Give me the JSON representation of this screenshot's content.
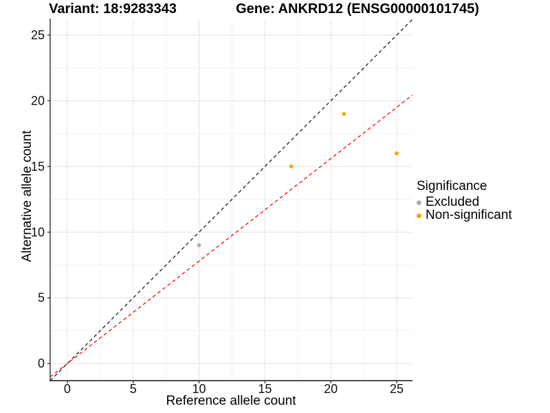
{
  "chart_data": {
    "type": "scatter",
    "titles": {
      "variant": "Variant: 18:9283343",
      "gene": "Gene: ANKRD12 (ENSG00000101745)"
    },
    "xlabel": "Reference allele count",
    "ylabel": "Alternative allele count",
    "xlim": [
      -1.3,
      26.2
    ],
    "ylim": [
      -1.3,
      26.2
    ],
    "major_ticks": [
      0,
      5,
      10,
      15,
      20,
      25
    ],
    "minor_ticks": [
      2.5,
      7.5,
      12.5,
      17.5,
      22.5
    ],
    "grid": true,
    "legend_position": "right",
    "points": [
      {
        "x": 10,
        "y": 9,
        "significance": "Excluded"
      },
      {
        "x": 17,
        "y": 15,
        "significance": "Non-significant"
      },
      {
        "x": 21,
        "y": 19,
        "significance": "Non-significant"
      },
      {
        "x": 25,
        "y": 16,
        "significance": "Non-significant"
      }
    ],
    "reference_lines": [
      {
        "name": "identity-line",
        "slope": 1.0,
        "intercept": 0,
        "color": "#1a1a1a",
        "linetype": "dashed"
      },
      {
        "name": "expected-ratio-line",
        "slope": 0.78,
        "intercept": 0,
        "color": "#ff0000",
        "linetype": "dashed"
      }
    ],
    "legend": {
      "title": "Significance",
      "items": [
        {
          "label": "Excluded",
          "color": "#aeaeae"
        },
        {
          "label": "Non-significant",
          "color": "#ffa500"
        }
      ]
    },
    "colors": {
      "grid_major": "#e3e3e3",
      "grid_minor": "#f1f1f1",
      "axis_line_x": "#4d4d4d",
      "axis_line_y": "#3c3c3c",
      "tick_mark": "#333333",
      "tick_text": "#111111"
    }
  }
}
